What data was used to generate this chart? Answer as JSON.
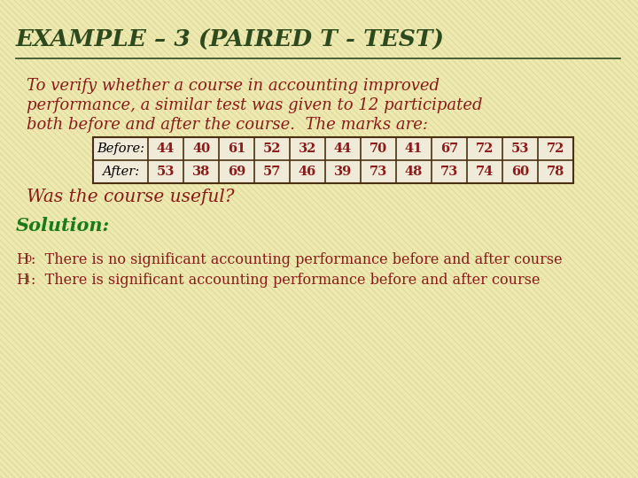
{
  "title": "EXAMPLE – 3 (PAIRED T - TEST)",
  "bg_color": "#ede9b0",
  "stripe_color": "#d8d490",
  "title_color": "#2d4a1e",
  "text_color": "#8b1a1a",
  "green_color": "#1a7a1a",
  "body_text_line1": "To verify whether a course in accounting improved",
  "body_text_line2": "performance, a similar test was given to 12 participated",
  "body_text_line3": "both before and after the course.  The marks are:",
  "question_text": "Was the course useful?",
  "solution_text": "Solution:",
  "h0_main": "0",
  "h1_main": "1",
  "h0_text": ":  There is no significant accounting performance before and after course",
  "h1_text": ":  There is significant accounting performance before and after course",
  "table_header": [
    "Before:",
    "After:"
  ],
  "before_values": [
    44,
    40,
    61,
    52,
    32,
    44,
    70,
    41,
    67,
    72,
    53,
    72
  ],
  "after_values": [
    53,
    38,
    69,
    57,
    46,
    39,
    73,
    48,
    73,
    74,
    60,
    78
  ],
  "table_bg": "#f0ead8",
  "table_border": "#4a3010"
}
